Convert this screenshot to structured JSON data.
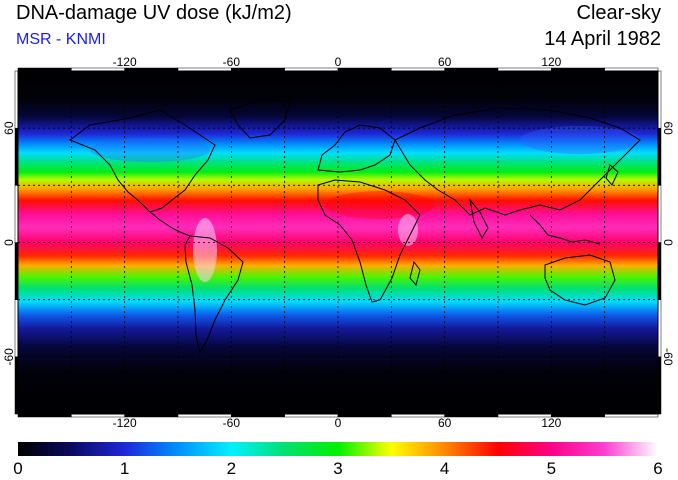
{
  "header": {
    "title": "DNA-damage UV dose (kJ/m2)",
    "subtitle": "MSR - KNMI",
    "scenario": "Clear-sky",
    "date": "14 April 1982"
  },
  "map": {
    "lon_range": [
      -180,
      180
    ],
    "lat_range": [
      -90,
      90
    ],
    "grid_lons": [
      -150,
      -120,
      -90,
      -60,
      -30,
      0,
      30,
      60,
      90,
      120,
      150
    ],
    "grid_lats": [
      -60,
      -30,
      0,
      30,
      60
    ],
    "lon_labels": [
      "-120",
      "-60",
      "0",
      "60",
      "120"
    ],
    "lat_labels": [
      "-60",
      "0",
      "60"
    ],
    "dose_profile": [
      {
        "lat": 90,
        "dose": 0.0
      },
      {
        "lat": 75,
        "dose": 0.05
      },
      {
        "lat": 66,
        "dose": 0.3
      },
      {
        "lat": 62,
        "dose": 0.65
      },
      {
        "lat": 57,
        "dose": 1.0
      },
      {
        "lat": 52,
        "dose": 1.45
      },
      {
        "lat": 47,
        "dose": 1.9
      },
      {
        "lat": 42,
        "dose": 2.45
      },
      {
        "lat": 37,
        "dose": 2.9
      },
      {
        "lat": 33,
        "dose": 3.35
      },
      {
        "lat": 28,
        "dose": 3.9
      },
      {
        "lat": 22,
        "dose": 4.45
      },
      {
        "lat": 15,
        "dose": 5.1
      },
      {
        "lat": 8,
        "dose": 5.35
      },
      {
        "lat": 0,
        "dose": 4.9
      },
      {
        "lat": -7,
        "dose": 4.35
      },
      {
        "lat": -12,
        "dose": 3.85
      },
      {
        "lat": -18,
        "dose": 3.15
      },
      {
        "lat": -24,
        "dose": 2.5
      },
      {
        "lat": -31,
        "dose": 1.9
      },
      {
        "lat": -38,
        "dose": 1.25
      },
      {
        "lat": -45,
        "dose": 0.75
      },
      {
        "lat": -55,
        "dose": 0.3
      },
      {
        "lat": -68,
        "dose": 0.05
      },
      {
        "lat": -90,
        "dose": 0.0
      }
    ],
    "colors": [
      "#000000",
      "#0a0a60",
      "#1e28d8",
      "#0090ff",
      "#00f0ff",
      "#00e070",
      "#00f000",
      "#ffff00",
      "#ff8800",
      "#ff0000",
      "#ff0088",
      "#ff40d0",
      "#ffffff"
    ]
  },
  "colorbar": {
    "range": [
      0,
      6
    ],
    "tick_labels": [
      "0",
      "1",
      "2",
      "3",
      "4",
      "5",
      "6"
    ]
  }
}
